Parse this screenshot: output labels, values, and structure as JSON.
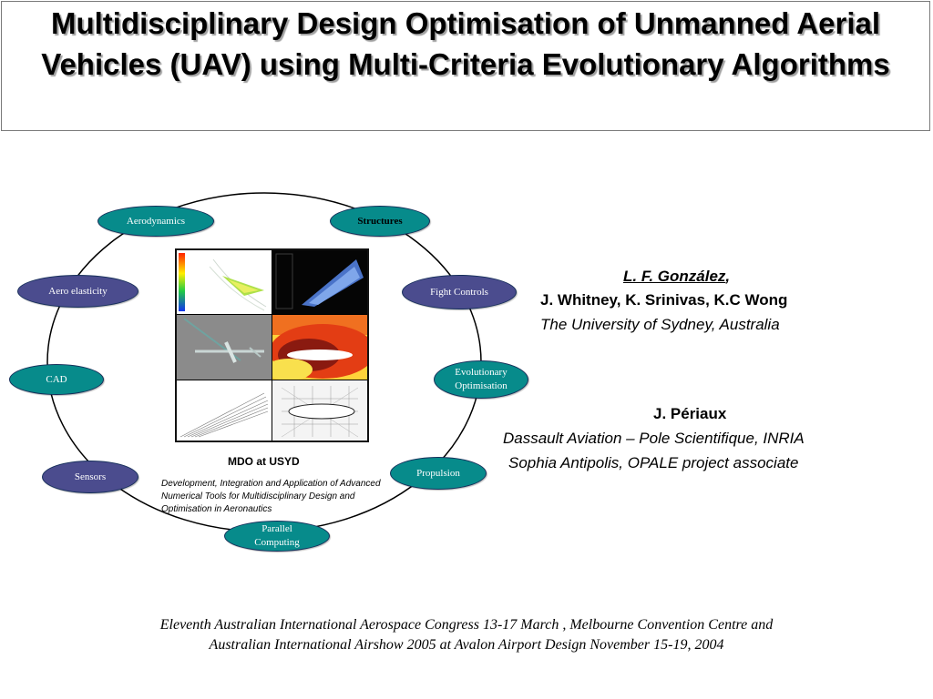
{
  "title": "Multidisciplinary Design Optimisation of Unmanned Aerial Vehicles (UAV) using Multi-Criteria Evolutionary Algorithms",
  "diagram": {
    "nodes": [
      {
        "id": "aerodynamics",
        "label": "Aerodynamics",
        "color": "#078b8b"
      },
      {
        "id": "structures",
        "label": "Structures",
        "color": "#078b8b"
      },
      {
        "id": "aero-elasticity",
        "label": "Aero elasticity",
        "color": "#4b4c8e"
      },
      {
        "id": "fight-controls",
        "label": "Fight Controls",
        "color": "#4b4c8e"
      },
      {
        "id": "cad",
        "label": "CAD",
        "color": "#078b8b"
      },
      {
        "id": "evolutionary-optimisation",
        "label": "Evolutionary Optimisation",
        "color": "#078b8b"
      },
      {
        "id": "sensors",
        "label": "Sensors",
        "color": "#4b4c8e"
      },
      {
        "id": "propulsion",
        "label": "Propulsion",
        "color": "#078b8b"
      },
      {
        "id": "parallel-computing",
        "label": "Parallel Computing",
        "color": "#078b8b"
      }
    ],
    "center_label": "MDO at USYD",
    "center_description": "Development, Integration and Application of Advanced Numerical Tools  for Multidisciplinary Design and Optimisation in Aeronautics"
  },
  "authors": {
    "lead_name": "L. F. González",
    "lead_comma": ",",
    "coauthors": "J. Whitney, K. Srinivas, K.C Wong",
    "affiliation1": "The University of Sydney, Australia",
    "author2": "J. Périaux",
    "affiliation2_line1": "Dassault Aviation –  Pole Scientifique, INRIA",
    "affiliation2_line2": "Sophia Antipolis, OPALE  project  associate"
  },
  "footer": {
    "line1": "Eleventh Australian International Aerospace Congress 13-17 March , Melbourne Convention Centre and",
    "line2": "Australian International Airshow 2005 at Avalon Airport Design November 15-19, 2004"
  }
}
